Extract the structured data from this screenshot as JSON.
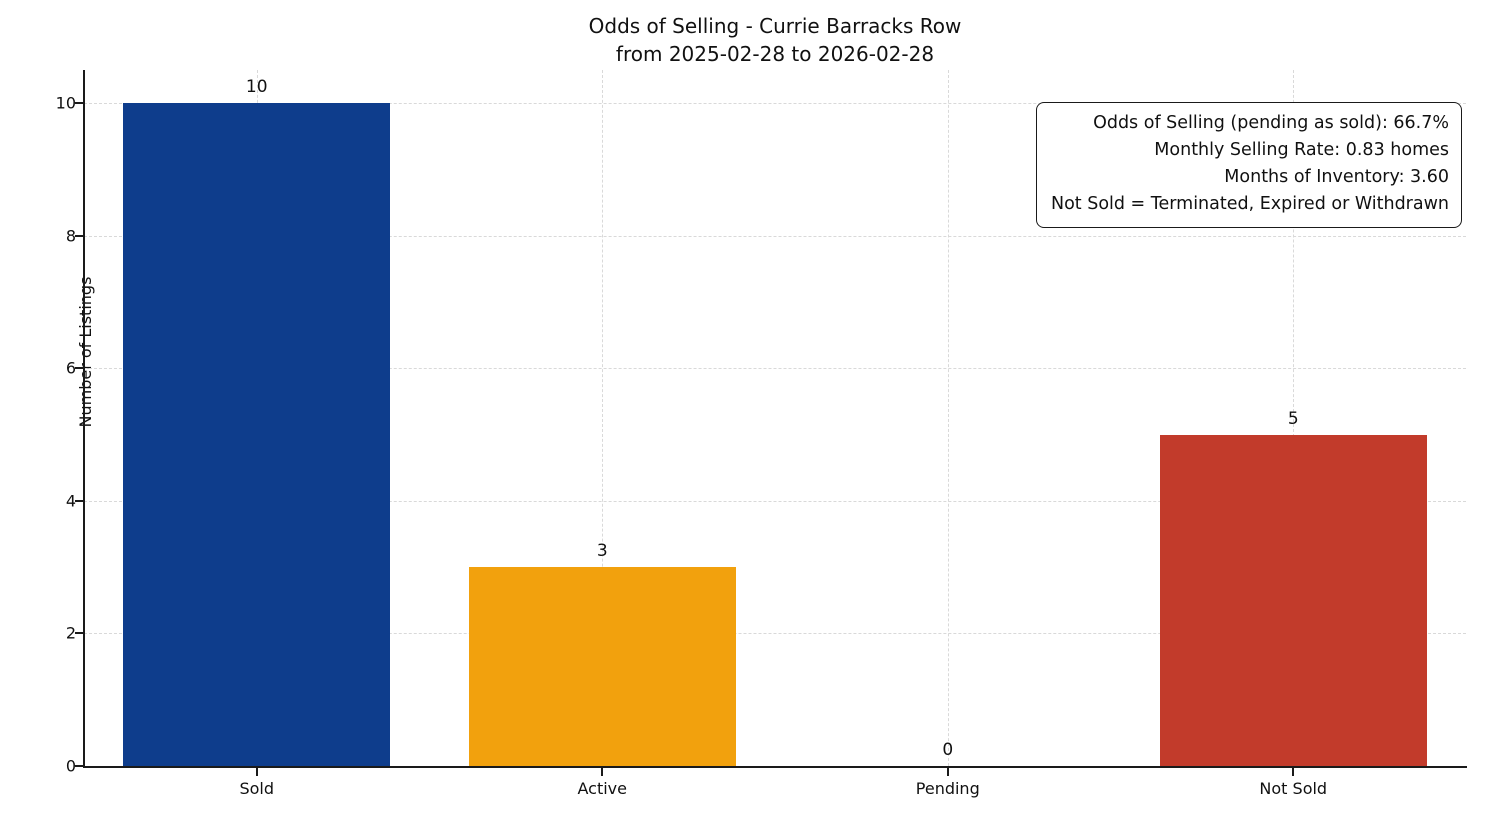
{
  "title": "Odds of Selling - Currie Barracks Row",
  "subtitle": "from 2025-02-28 to 2026-02-28",
  "chart_data": {
    "type": "bar",
    "categories": [
      "Sold",
      "Active",
      "Pending",
      "Not Sold"
    ],
    "values": [
      10,
      3,
      0,
      5
    ],
    "bar_colors": [
      "#0e3d8c",
      "#f2a10d",
      "#888888",
      "#c23b2b"
    ],
    "value_labels": [
      "10",
      "3",
      "0",
      "5"
    ],
    "title": "Odds of Selling - Currie Barracks Row",
    "subtitle": "from 2025-02-28 to 2026-02-28",
    "xlabel": "",
    "ylabel": "Number of Listings",
    "ylim": [
      0,
      10.5
    ],
    "yticks": [
      0,
      2,
      4,
      6,
      8,
      10
    ],
    "grid": true,
    "grid_style": "dashed",
    "legend_position": "none",
    "annotation": {
      "lines": [
        "Odds of Selling (pending as sold): 66.7%",
        "Monthly Selling Rate: 0.83 homes",
        "Months of Inventory: 3.60",
        "Not Sold = Terminated, Expired or Withdrawn"
      ]
    }
  }
}
